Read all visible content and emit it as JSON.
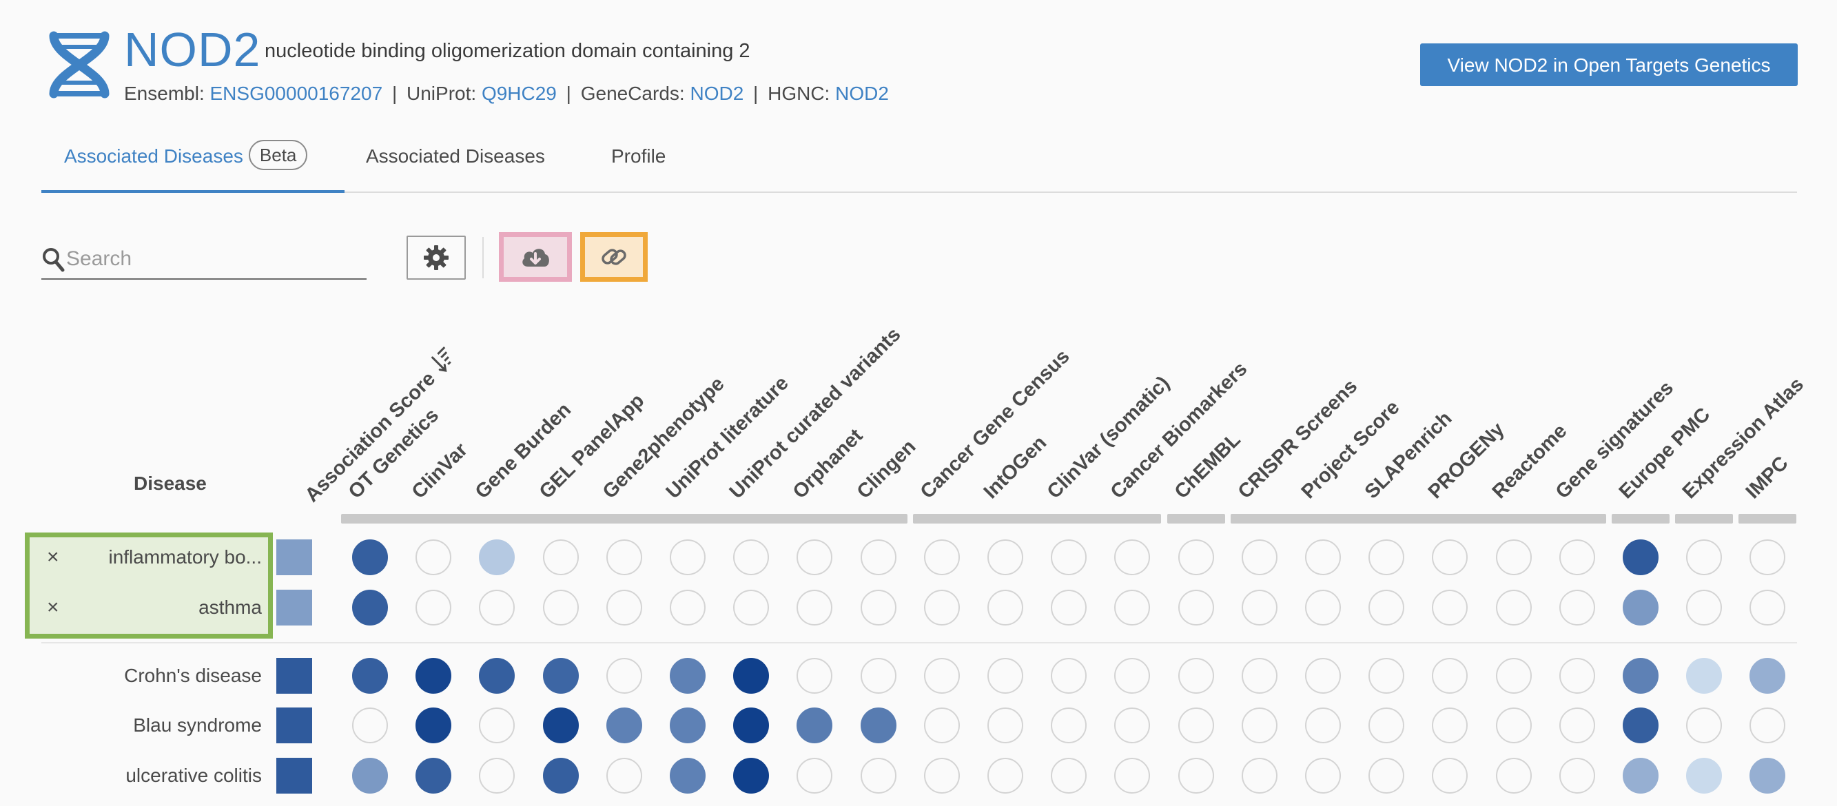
{
  "header": {
    "symbol": "NOD2",
    "name": "nucleotide binding oligomerization domain containing 2",
    "ensembl_label": "Ensembl:",
    "ensembl_id": "ENSG00000167207",
    "uniprot_label": "UniProt:",
    "uniprot_id": "Q9HC29",
    "genecards_label": "GeneCards:",
    "genecards_id": "NOD2",
    "hgnc_label": "HGNC:",
    "hgnc_id": "NOD2",
    "separator": "|",
    "button_label": "View NOD2 in Open Targets Genetics"
  },
  "tabs": [
    {
      "label": "Associated Diseases",
      "badge": "Beta",
      "active": true
    },
    {
      "label": "Associated Diseases",
      "active": false
    },
    {
      "label": "Profile",
      "active": false
    }
  ],
  "toolbar": {
    "search_placeholder": "Search",
    "icons": [
      "search-icon",
      "gear-icon",
      "cloud-download-icon",
      "link-icon"
    ]
  },
  "grid": {
    "disease_header": "Disease",
    "score_header": "Association Score",
    "sort_icon": "sort-descending-icon",
    "columns": [
      "OT Genetics",
      "ClinVar",
      "Gene Burden",
      "GEL PanelApp",
      "Gene2phenotype",
      "UniProt literature",
      "UniProt curated variants",
      "Orphanet",
      "Clingen",
      "Cancer Gene Census",
      "IntOGen",
      "ClinVar (somatic)",
      "Cancer Biomarkers",
      "ChEMBL",
      "CRISPR Screens",
      "Project Score",
      "SLAPenrich",
      "PROGENy",
      "Reactome",
      "Gene signatures",
      "Europe PMC",
      "Expression Atlas",
      "IMPC"
    ],
    "groups": [
      9,
      4,
      1,
      6,
      1,
      1,
      1
    ],
    "remove_icon": "×",
    "pinned_rows": [
      {
        "name": "inflammatory bo...",
        "score": 0.45,
        "cells": [
          0.82,
          0,
          0.2,
          0,
          0,
          0,
          0,
          0,
          0,
          0,
          0,
          0,
          0,
          0,
          0,
          0,
          0,
          0,
          0,
          0,
          0.85,
          0,
          0
        ]
      },
      {
        "name": "asthma",
        "score": 0.45,
        "cells": [
          0.82,
          0,
          0,
          0,
          0,
          0,
          0,
          0,
          0,
          0,
          0,
          0,
          0,
          0,
          0,
          0,
          0,
          0,
          0,
          0,
          0.48,
          0,
          0
        ]
      }
    ],
    "rows": [
      {
        "name": "Crohn's disease",
        "score": 0.85,
        "cells": [
          0.82,
          0.97,
          0.82,
          0.78,
          0,
          0.62,
          1.0,
          0,
          0,
          0,
          0,
          0,
          0,
          0,
          0,
          0,
          0,
          0,
          0,
          0,
          0.62,
          0.1,
          0.35
        ]
      },
      {
        "name": "Blau syndrome",
        "score": 0.85,
        "cells": [
          0,
          0.97,
          0,
          0.97,
          0.62,
          0.62,
          1.0,
          0.65,
          0.65,
          0,
          0,
          0,
          0,
          0,
          0,
          0,
          0,
          0,
          0,
          0,
          0.82,
          0,
          0
        ]
      },
      {
        "name": "ulcerative colitis",
        "score": 0.85,
        "cells": [
          0.48,
          0.82,
          0,
          0.82,
          0,
          0.62,
          1.0,
          0,
          0,
          0,
          0,
          0,
          0,
          0,
          0,
          0,
          0,
          0,
          0,
          0,
          0.35,
          0.1,
          0.35
        ]
      }
    ]
  },
  "colors": {
    "accent": "#3f82c4",
    "pinned_border": "#86b552",
    "pinned_fill": "#e6efdb",
    "download_border": "#e9a9bf",
    "link_border": "#f0a83a",
    "cell_empty_border": "#d4d4d4"
  }
}
